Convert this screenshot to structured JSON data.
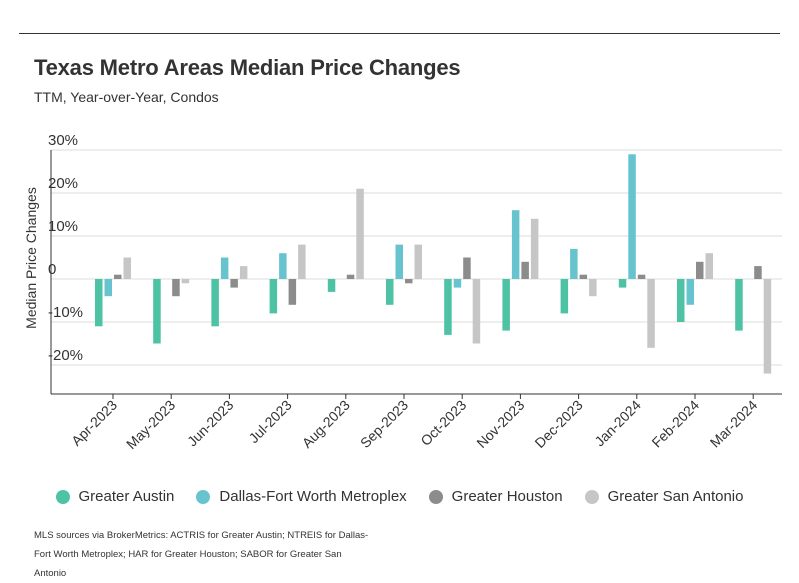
{
  "header": {
    "title": "Texas Metro Areas Median Price Changes",
    "subtitle": "TTM, Year-over-Year, Condos"
  },
  "footnote": "MLS sources via BrokerMetrics: ACTRIS for Greater Austin; NTREIS for Dallas-Fort Worth Metroplex; HAR for Greater Houston; SABOR for Greater San Antonio",
  "chart_data": {
    "type": "bar",
    "title": "Texas Metro Areas Median Price Changes",
    "subtitle": "TTM, Year-over-Year, Condos",
    "xlabel": "",
    "ylabel": "Median Price Changes",
    "ylim": [
      -27,
      33
    ],
    "yticks": [
      30,
      20,
      10,
      0,
      -10,
      -20
    ],
    "ytick_labels": [
      "30%",
      "20%",
      "10%",
      "0",
      "-10%",
      "-20%"
    ],
    "grid": true,
    "legend_position": "bottom",
    "categories": [
      "Apr-2023",
      "May-2023",
      "Jun-2023",
      "Jul-2023",
      "Aug-2023",
      "Sep-2023",
      "Oct-2023",
      "Nov-2023",
      "Dec-2023",
      "Jan-2024",
      "Feb-2024",
      "Mar-2024"
    ],
    "series": [
      {
        "name": "Greater Austin",
        "color": "#4dc2a4",
        "values": [
          -11,
          -15,
          -11,
          -8,
          -3,
          -6,
          -13,
          -12,
          -8,
          -2,
          -10,
          -12
        ]
      },
      {
        "name": "Dallas-Fort Worth Metroplex",
        "color": "#67c4cf",
        "values": [
          -4,
          null,
          5,
          6,
          null,
          8,
          -2,
          16,
          7,
          29,
          -6,
          null
        ]
      },
      {
        "name": "Greater Houston",
        "color": "#8c8c8c",
        "values": [
          1,
          -4,
          -2,
          -6,
          1,
          -1,
          5,
          4,
          1,
          1,
          4,
          3
        ]
      },
      {
        "name": "Greater San Antonio",
        "color": "#c6c6c6",
        "values": [
          5,
          -1,
          3,
          8,
          21,
          8,
          -15,
          14,
          -4,
          -16,
          6,
          -22
        ]
      }
    ]
  }
}
